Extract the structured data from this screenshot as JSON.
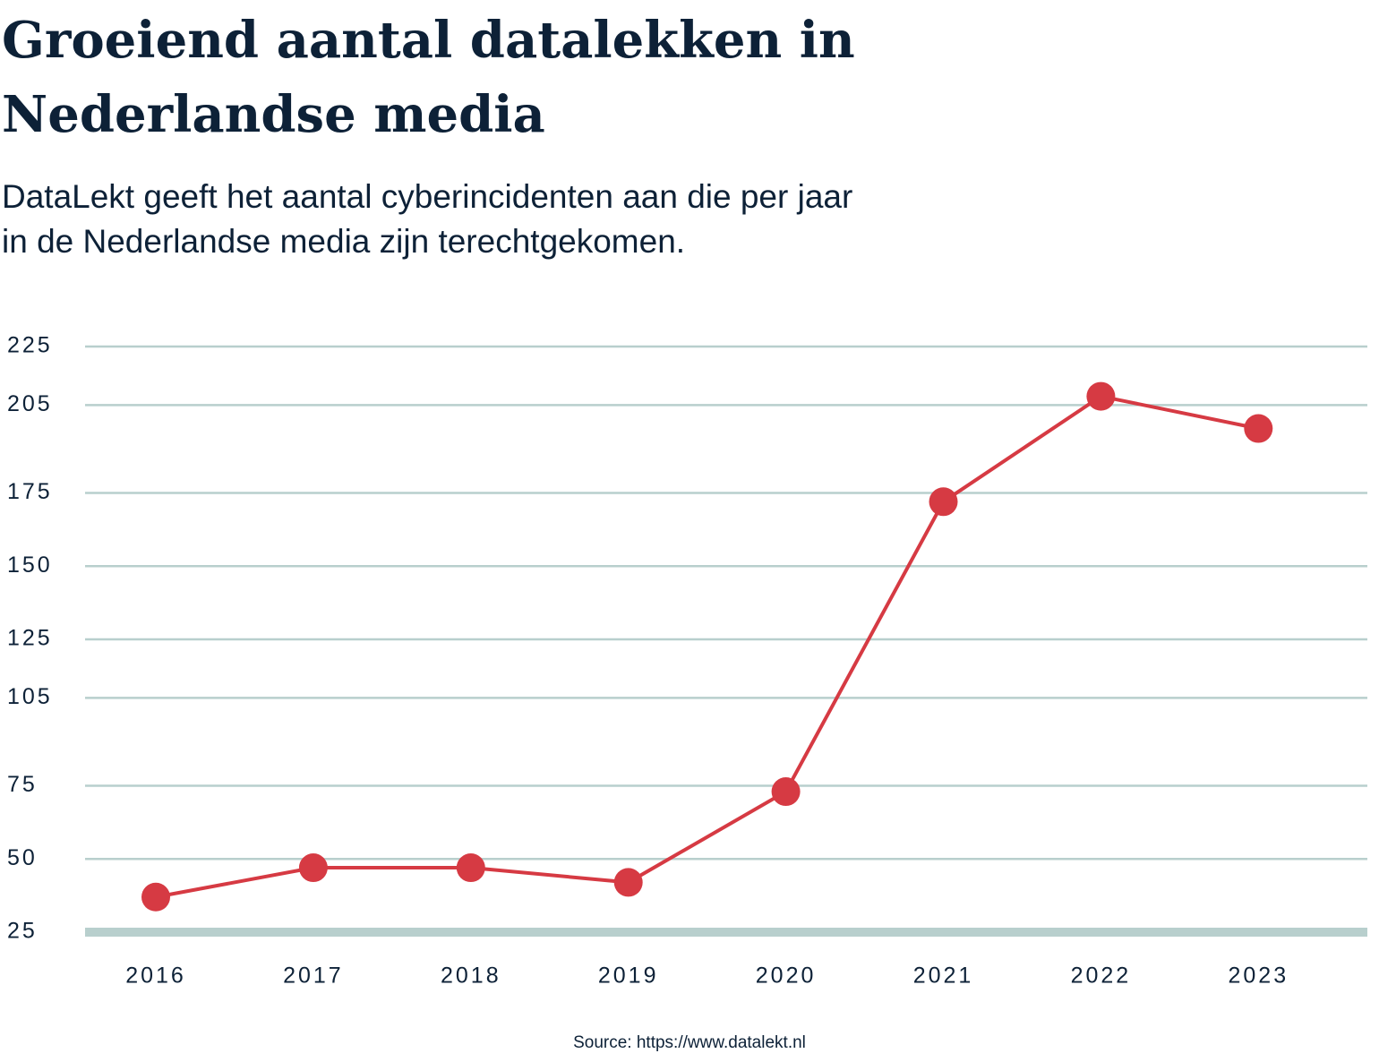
{
  "chart_data": {
    "type": "line",
    "title": "Groeiend aantal datalekken in Nederlandse media",
    "subtitle": "DataLekt geeft het aantal cyberincidenten aan die per jaar in de Nederlandse media zijn terechtgekomen.",
    "source": "Source: https://www.datalekt.nl",
    "categories": [
      "2016",
      "2017",
      "2018",
      "2019",
      "2020",
      "2021",
      "2022",
      "2023"
    ],
    "series": [
      {
        "name": "Datalekken",
        "color": "#d63a43",
        "values": [
          37,
          47,
          47,
          42,
          73,
          172,
          208,
          197
        ]
      }
    ],
    "ylim": [
      25,
      225
    ],
    "yticks": [
      25,
      50,
      75,
      105,
      125,
      150,
      175,
      205,
      225
    ],
    "grid": true
  }
}
